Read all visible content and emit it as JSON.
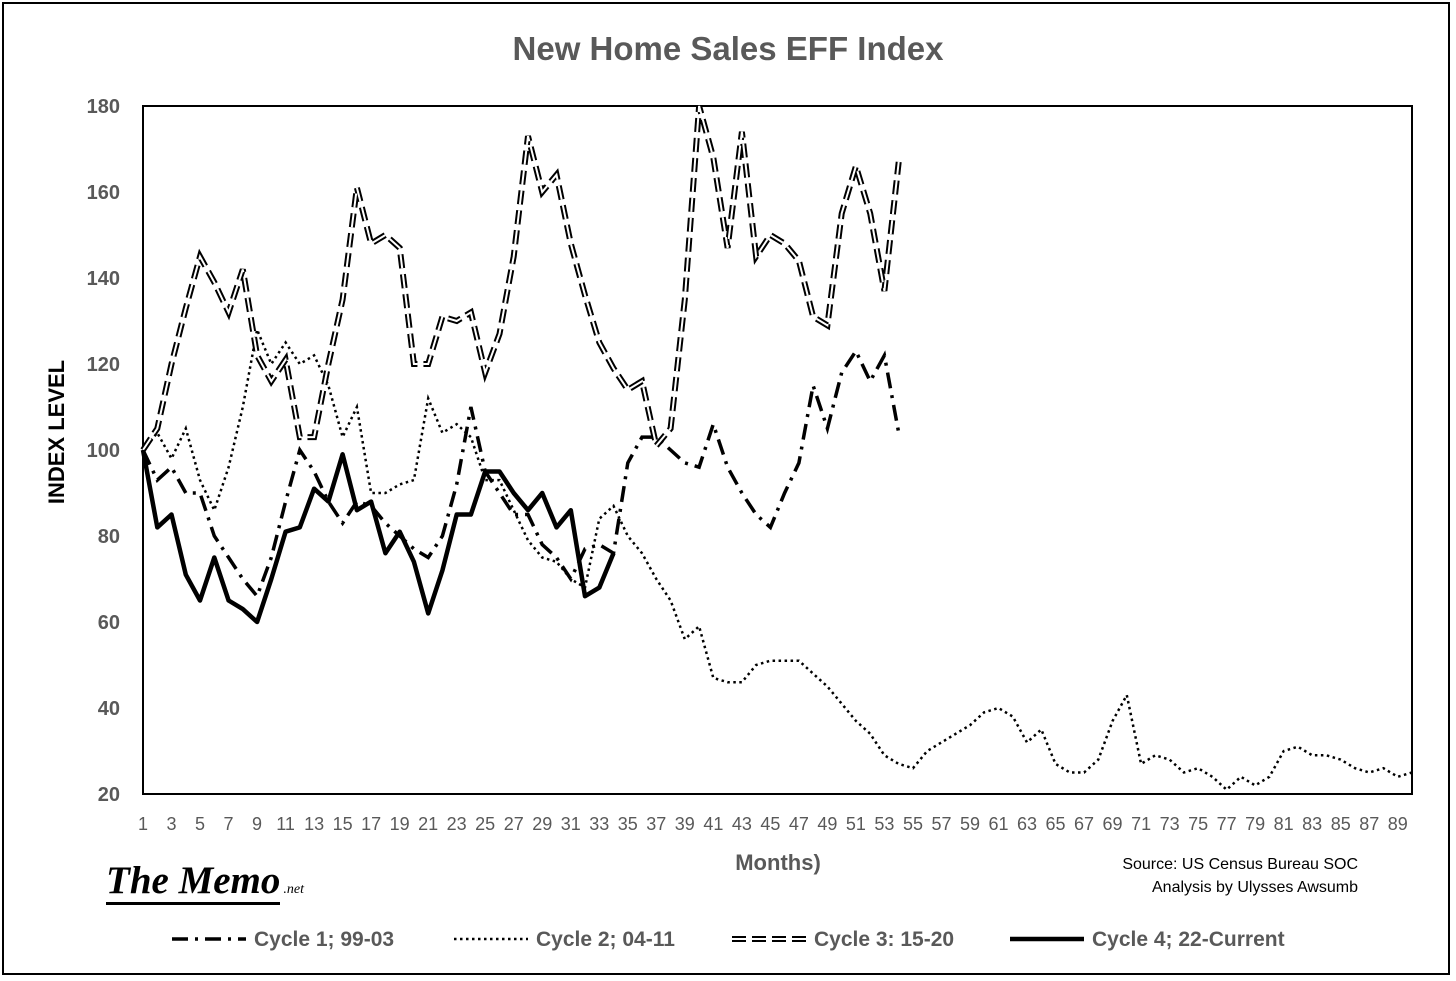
{
  "chart_data": {
    "type": "line",
    "title": "New Home  Sales  EFF Index",
    "xlabel": "Months)",
    "ylabel": "INDEX LEVEL",
    "ylim": [
      20,
      180
    ],
    "yticks": [
      180,
      160,
      140,
      120,
      100,
      80,
      60,
      40,
      20
    ],
    "xlim": [
      1,
      90
    ],
    "xtick_labels": [
      "1",
      "3",
      "5",
      "7",
      "9",
      "11",
      "13",
      "15",
      "17",
      "19",
      "21",
      "23",
      "25",
      "27",
      "29",
      "31",
      "33",
      "35",
      "37",
      "39",
      "41",
      "43",
      "45",
      "47",
      "49",
      "51",
      "53",
      "55",
      "57",
      "59",
      "61",
      "63",
      "65",
      "67",
      "69",
      "71",
      "73",
      "75",
      "77",
      "79",
      "81",
      "83",
      "85",
      "87",
      "89"
    ],
    "grid": false,
    "legend_position": "bottom",
    "series": [
      {
        "name": "Cycle 1; 99-03",
        "style": "dash-dot",
        "values": [
          100,
          93,
          96,
          90,
          90,
          80,
          75,
          70,
          66,
          75,
          88,
          100,
          95,
          88,
          83,
          88,
          87,
          83,
          80,
          77,
          75,
          80,
          92,
          110,
          95,
          90,
          85,
          85,
          78,
          75,
          70,
          77,
          78,
          76,
          97,
          103,
          103,
          100,
          97,
          96,
          106,
          96,
          90,
          85,
          82,
          90,
          97,
          115,
          105,
          118,
          123,
          116,
          122,
          104
        ]
      },
      {
        "name": "Cycle 2; 04-11",
        "style": "dotted",
        "values": [
          100,
          104,
          98,
          105,
          93,
          86,
          96,
          110,
          128,
          120,
          125,
          120,
          122,
          115,
          103,
          110,
          90,
          90,
          92,
          93,
          112,
          104,
          106,
          103,
          93,
          93,
          86,
          79,
          75,
          74,
          70,
          68,
          84,
          87,
          80,
          76,
          70,
          65,
          56,
          59,
          47,
          46,
          46,
          50,
          51,
          51,
          51,
          48,
          45,
          41,
          37,
          34,
          29,
          27,
          26,
          30,
          32,
          34,
          36,
          39,
          40,
          38,
          32,
          35,
          27,
          25,
          25,
          28,
          37,
          43,
          27,
          29,
          28,
          25,
          26,
          24,
          21,
          24,
          22,
          24,
          30,
          31,
          29,
          29,
          28,
          26,
          25,
          26,
          24,
          25
        ]
      },
      {
        "name": "Cycle 3: 15-20",
        "style": "double-dash",
        "values": [
          100,
          105,
          120,
          133,
          145,
          139,
          132,
          142,
          122,
          116,
          121,
          103,
          103,
          120,
          135,
          161,
          148,
          150,
          147,
          120,
          120,
          131,
          130,
          132,
          118,
          127,
          145,
          173,
          160,
          164,
          148,
          136,
          125,
          119,
          114,
          116,
          101,
          105,
          135,
          180,
          168,
          147,
          174,
          145,
          150,
          148,
          144,
          131,
          129,
          155,
          166,
          155,
          137,
          167
        ]
      },
      {
        "name": "Cycle 4; 22-Current",
        "style": "solid-thick",
        "values": [
          100,
          82,
          85,
          71,
          65,
          75,
          65,
          63,
          60,
          70,
          81,
          82,
          91,
          88,
          99,
          86,
          88,
          76,
          81,
          74,
          62,
          72,
          85,
          85,
          95,
          95,
          90,
          86,
          90,
          82,
          86,
          66,
          68,
          76
        ]
      }
    ],
    "annotations": [
      "Source: US Census Bureau SOC",
      "Analysis by Ulysses Awsumb"
    ]
  },
  "branding": {
    "logo_main": "The Memo",
    "logo_suffix": ".net"
  }
}
